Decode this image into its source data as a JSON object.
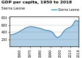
{
  "chart_data": {
    "type": "area",
    "title": "GDP per capita, 1950 to 2018",
    "subtitle": "Sierra Leone",
    "x": [
      1950,
      1951,
      1952,
      1953,
      1954,
      1955,
      1956,
      1957,
      1958,
      1959,
      1960,
      1961,
      1962,
      1963,
      1964,
      1965,
      1966,
      1967,
      1968,
      1969,
      1970,
      1971,
      1972,
      1973,
      1974,
      1975,
      1976,
      1977,
      1978,
      1979,
      1980,
      1981,
      1982,
      1983,
      1984,
      1985,
      1986,
      1987,
      1988,
      1989,
      1990,
      1991,
      1992,
      1993,
      1994,
      1995,
      1996,
      1997,
      1998,
      1999,
      2000,
      2001,
      2002,
      2003,
      2004,
      2005,
      2006,
      2007,
      2008,
      2009,
      2010,
      2011,
      2012,
      2013,
      2014,
      2015,
      2016,
      2017,
      2018
    ],
    "series": [
      {
        "name": "Sierra Leone",
        "values": [
          320,
          325,
          330,
          338,
          345,
          355,
          368,
          382,
          395,
          410,
          428,
          445,
          460,
          475,
          490,
          510,
          525,
          535,
          540,
          548,
          555,
          558,
          555,
          550,
          545,
          538,
          530,
          525,
          520,
          515,
          508,
          498,
          488,
          478,
          468,
          460,
          452,
          448,
          445,
          440,
          432,
          418,
          398,
          368,
          330,
          285,
          265,
          248,
          260,
          275,
          295,
          330,
          375,
          415,
          448,
          472,
          492,
          510,
          525,
          530,
          545,
          568,
          600,
          648,
          700,
          730,
          720,
          705,
          720
        ]
      }
    ],
    "xlim": [
      1950,
      2018
    ],
    "ylim": [
      0,
      850
    ],
    "xticks": [
      1960,
      1970,
      1980,
      1990,
      2000,
      2010,
      2018
    ],
    "yticks": [
      200,
      400,
      600,
      800
    ],
    "grid": true,
    "legend": "upper right"
  }
}
